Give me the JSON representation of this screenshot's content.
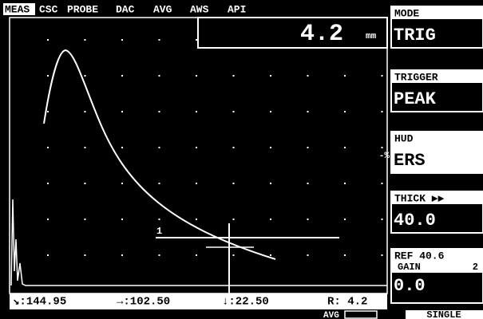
{
  "menu": {
    "tabs": [
      "MEAS",
      "CSC",
      "PROBE",
      "DAC",
      "AVG",
      "AWS",
      "API"
    ]
  },
  "reading": {
    "value": "4.2",
    "unit": "mm"
  },
  "panels": [
    {
      "label": "MODE",
      "value": "TRIG"
    },
    {
      "label": "TRIGGER",
      "value": "PEAK"
    },
    {
      "label": "HUD",
      "value": "ERS",
      "marker": "-%"
    },
    {
      "label": "THICK ▶▶",
      "value": "40.0"
    },
    {
      "label": "REF 40.6",
      "sublabel": "GAIN",
      "subvalue": "2",
      "value": "0.0"
    }
  ],
  "status": {
    "items": [
      "↘:144.95",
      "→:102.50",
      "↓:22.50",
      "R: 4.2"
    ],
    "avg": "AVG",
    "mode": "SINGLE",
    "gate": "1"
  }
}
